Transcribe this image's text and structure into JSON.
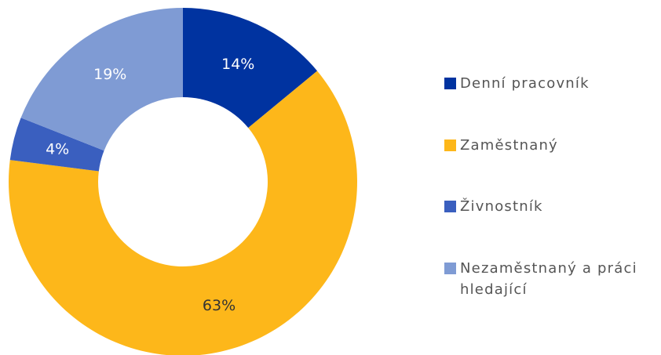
{
  "chart_data": {
    "type": "donut",
    "categories": [
      "Denní pracovník",
      "Zaměstnaný",
      "Živnostník",
      "Nezaměstnaný a práci hledající"
    ],
    "values": [
      14,
      63,
      4,
      19
    ],
    "value_labels": [
      "14%",
      "63%",
      "4%",
      "19%"
    ],
    "colors": [
      "#0033a0",
      "#fdb71a",
      "#3a5fbf",
      "#7f9bd4"
    ],
    "legend": "right"
  }
}
